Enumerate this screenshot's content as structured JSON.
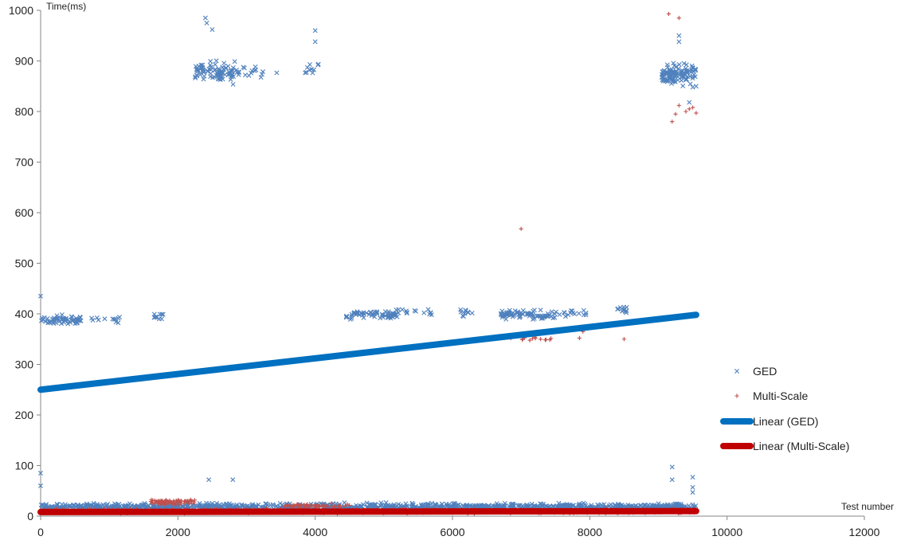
{
  "chart_data": {
    "type": "scatter",
    "xlabel": "Test number",
    "ylabel": "Time(ms)",
    "xlim": [
      0,
      12000
    ],
    "ylim": [
      0,
      1000
    ],
    "xticks": [
      0,
      2000,
      4000,
      6000,
      8000,
      10000,
      12000
    ],
    "yticks": [
      0,
      100,
      200,
      300,
      400,
      500,
      600,
      700,
      800,
      900,
      1000
    ],
    "grid": false,
    "legend_position": "right",
    "series": [
      {
        "name": "GED",
        "marker": "x",
        "color": "#4f81bd",
        "clusters": [
          {
            "x_range": [
              0,
              9550
            ],
            "y_mean": 18,
            "y_spread": 10,
            "count": 1200
          },
          {
            "x_range": [
              0,
              600
            ],
            "y_mean": 388,
            "y_spread": 14,
            "count": 60
          },
          {
            "x_range": [
              700,
              1200
            ],
            "y_mean": 390,
            "y_spread": 10,
            "count": 12
          },
          {
            "x_range": [
              1650,
              1800
            ],
            "y_mean": 395,
            "y_spread": 10,
            "count": 10
          },
          {
            "x_range": [
              2250,
              2900
            ],
            "y_mean": 878,
            "y_spread": 28,
            "count": 90
          },
          {
            "x_range": [
              2950,
              3450
            ],
            "y_mean": 880,
            "y_spread": 20,
            "count": 14
          },
          {
            "x_range": [
              3850,
              4050
            ],
            "y_mean": 888,
            "y_spread": 25,
            "count": 10
          },
          {
            "x_range": [
              4450,
              5200
            ],
            "y_mean": 398,
            "y_spread": 12,
            "count": 70
          },
          {
            "x_range": [
              5200,
              5700
            ],
            "y_mean": 404,
            "y_spread": 10,
            "count": 14
          },
          {
            "x_range": [
              6100,
              6300
            ],
            "y_mean": 402,
            "y_spread": 10,
            "count": 10
          },
          {
            "x_range": [
              6700,
              7500
            ],
            "y_mean": 398,
            "y_spread": 12,
            "count": 80
          },
          {
            "x_range": [
              7500,
              8000
            ],
            "y_mean": 402,
            "y_spread": 10,
            "count": 16
          },
          {
            "x_range": [
              8400,
              8550
            ],
            "y_mean": 408,
            "y_spread": 10,
            "count": 12
          },
          {
            "x_range": [
              9050,
              9550
            ],
            "y_mean": 875,
            "y_spread": 28,
            "count": 110
          }
        ],
        "outliers": [
          [
            0,
            85
          ],
          [
            0,
            60
          ],
          [
            0,
            435
          ],
          [
            2450,
            72
          ],
          [
            2800,
            72
          ],
          [
            2400,
            985
          ],
          [
            2420,
            975
          ],
          [
            2500,
            962
          ],
          [
            4000,
            960
          ],
          [
            4000,
            938
          ],
          [
            9200,
            97
          ],
          [
            9200,
            72
          ],
          [
            9500,
            77
          ],
          [
            9500,
            57
          ],
          [
            9500,
            47
          ],
          [
            9300,
            950
          ],
          [
            9300,
            938
          ],
          [
            9450,
            818
          ],
          [
            9500,
            848
          ],
          [
            9550,
            850
          ]
        ]
      },
      {
        "name": "Multi-Scale",
        "marker": "+",
        "color": "#c0504d",
        "clusters": [
          {
            "x_range": [
              0,
              9550
            ],
            "y_mean": 10,
            "y_spread": 6,
            "count": 900
          },
          {
            "x_range": [
              1600,
              2250
            ],
            "y_mean": 28,
            "y_spread": 8,
            "count": 80
          },
          {
            "x_range": [
              3550,
              4500
            ],
            "y_mean": 20,
            "y_spread": 6,
            "count": 60
          },
          {
            "x_range": [
              6900,
              7450
            ],
            "y_mean": 350,
            "y_spread": 5,
            "count": 12
          }
        ],
        "outliers": [
          [
            7000,
            568
          ],
          [
            7850,
            352
          ],
          [
            7900,
            365
          ],
          [
            8500,
            350
          ],
          [
            6850,
            352
          ],
          [
            9150,
            993
          ],
          [
            9300,
            985
          ],
          [
            9200,
            780
          ],
          [
            9250,
            795
          ],
          [
            9300,
            812
          ],
          [
            9400,
            800
          ],
          [
            9450,
            805
          ],
          [
            9500,
            808
          ],
          [
            9550,
            797
          ]
        ]
      }
    ],
    "trendlines": [
      {
        "name": "Linear (GED)",
        "x": [
          0,
          9550
        ],
        "y": [
          250,
          398
        ],
        "color": "#0070c0"
      },
      {
        "name": "Linear (Multi-Scale)",
        "x": [
          0,
          9550
        ],
        "y": [
          8,
          10
        ],
        "color": "#c00000"
      }
    ]
  }
}
